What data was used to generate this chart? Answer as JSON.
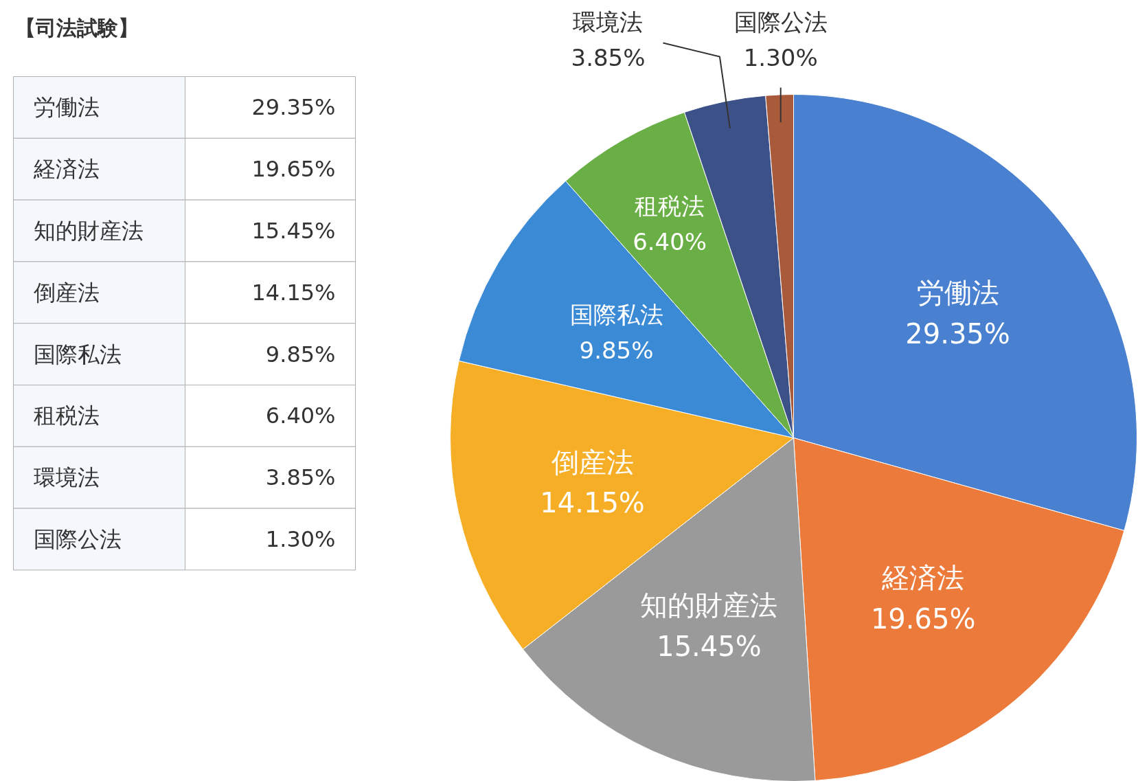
{
  "chart_data": {
    "type": "pie",
    "title": "【司法試験】",
    "categories": [
      "労働法",
      "経済法",
      "知的財産法",
      "倒産法",
      "国際私法",
      "租税法",
      "環境法",
      "国際公法"
    ],
    "values": [
      29.35,
      19.65,
      15.45,
      14.15,
      9.85,
      6.4,
      3.85,
      1.3
    ],
    "colors": [
      "#4a80d0",
      "#ec7a3a",
      "#9a9a9a",
      "#f5ae25",
      "#3a8ad6",
      "#6aaf45",
      "#3d5189",
      "#a85a3a"
    ],
    "value_labels": [
      "29.35%",
      "19.65%",
      "15.45%",
      "14.15%",
      "9.85%",
      "6.40%",
      "3.85%",
      "1.30%"
    ]
  }
}
